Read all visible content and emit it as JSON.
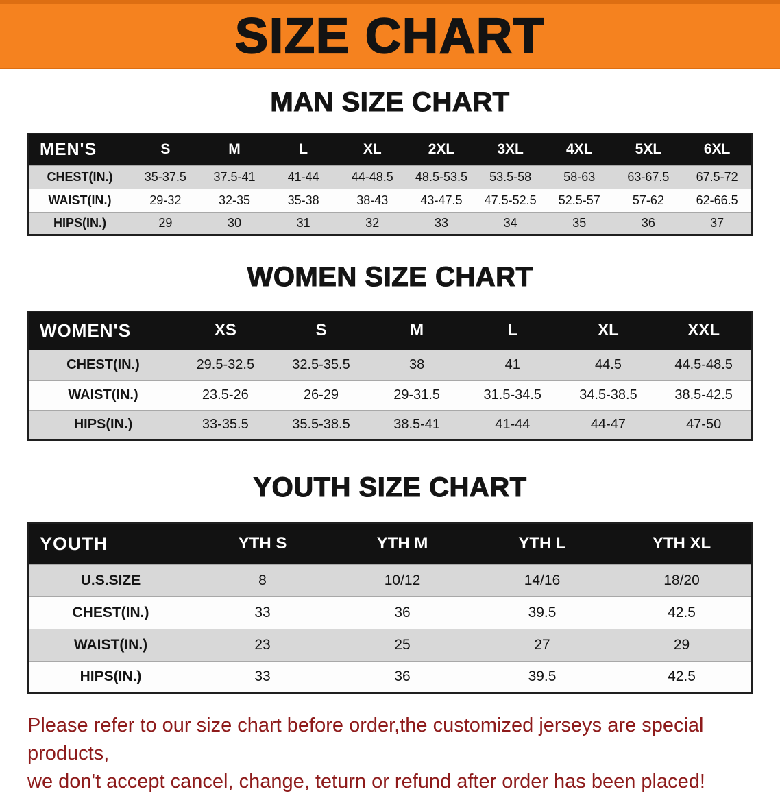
{
  "banner": {
    "title": "SIZE CHART"
  },
  "sections": {
    "men": {
      "heading": "MAN SIZE CHART",
      "table": {
        "header": [
          "MEN'S",
          "S",
          "M",
          "L",
          "XL",
          "2XL",
          "3XL",
          "4XL",
          "5XL",
          "6XL"
        ],
        "rows": [
          [
            "CHEST(IN.)",
            "35-37.5",
            "37.5-41",
            "41-44",
            "44-48.5",
            "48.5-53.5",
            "53.5-58",
            "58-63",
            "63-67.5",
            "67.5-72"
          ],
          [
            "WAIST(IN.)",
            "29-32",
            "32-35",
            "35-38",
            "38-43",
            "43-47.5",
            "47.5-52.5",
            "52.5-57",
            "57-62",
            "62-66.5"
          ],
          [
            "HIPS(IN.)",
            "29",
            "30",
            "31",
            "32",
            "33",
            "34",
            "35",
            "36",
            "37"
          ]
        ]
      }
    },
    "women": {
      "heading": "WOMEN SIZE CHART",
      "table": {
        "header": [
          "WOMEN'S",
          "XS",
          "S",
          "M",
          "L",
          "XL",
          "XXL"
        ],
        "rows": [
          [
            "CHEST(IN.)",
            "29.5-32.5",
            "32.5-35.5",
            "38",
            "41",
            "44.5",
            "44.5-48.5"
          ],
          [
            "WAIST(IN.)",
            "23.5-26",
            "26-29",
            "29-31.5",
            "31.5-34.5",
            "34.5-38.5",
            "38.5-42.5"
          ],
          [
            "HIPS(IN.)",
            "33-35.5",
            "35.5-38.5",
            "38.5-41",
            "41-44",
            "44-47",
            "47-50"
          ]
        ]
      }
    },
    "youth": {
      "heading": "YOUTH SIZE CHART",
      "table": {
        "header": [
          "YOUTH",
          "YTH S",
          "YTH M",
          "YTH L",
          "YTH XL"
        ],
        "rows": [
          [
            "U.S.SIZE",
            "8",
            "10/12",
            "14/16",
            "18/20"
          ],
          [
            "CHEST(IN.)",
            "33",
            "36",
            "39.5",
            "42.5"
          ],
          [
            "WAIST(IN.)",
            "23",
            "25",
            "27",
            "29"
          ],
          [
            "HIPS(IN.)",
            "33",
            "36",
            "39.5",
            "42.5"
          ]
        ]
      }
    }
  },
  "footer": {
    "lines": [
      "Please refer to our size chart before order,the customized jerseys are special products,",
      "we don't accept cancel, change, teturn or refund after order has been placed!"
    ]
  },
  "colors": {
    "banner_orange": "#f5821f",
    "banner_orange_dark": "#dd6e12",
    "header_black": "#121212",
    "row_gray": "#d8d8d8",
    "row_white": "#fdfdfd",
    "footer_red": "#8e1b1b"
  }
}
